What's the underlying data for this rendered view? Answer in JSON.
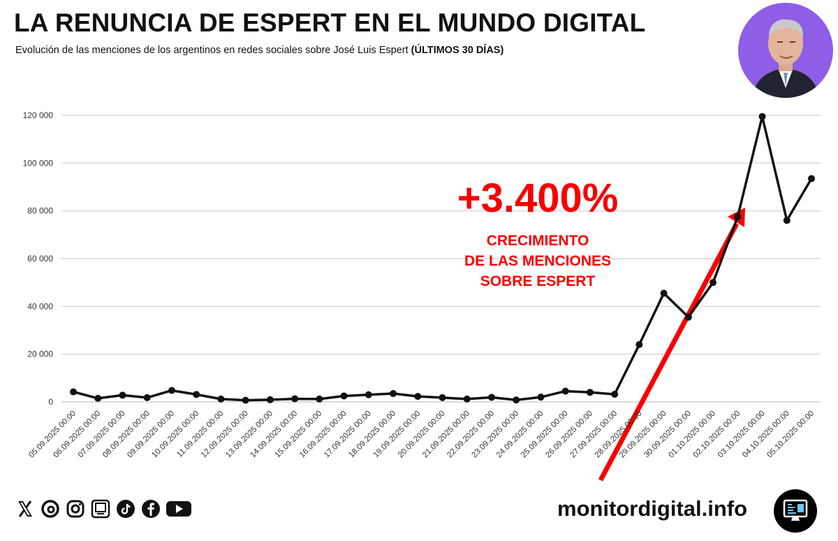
{
  "header": {
    "title": "LA RENUNCIA DE ESPERT EN EL MUNDO DIGITAL",
    "subtitle": "Evolución de las menciones de los argentinos en redes sociales sobre José Luis Espert",
    "subtitle_bold": "(ÚLTIMOS 30 DÍAS)"
  },
  "annotation": {
    "big": "+3.400%",
    "line1": "CRECIMIENTO",
    "line2": "DE LAS MENCIONES",
    "line3": "SOBRE ESPERT"
  },
  "footer": {
    "site": "monitordigital.info",
    "social_icons": [
      "x-icon",
      "threads-icon",
      "instagram-icon",
      "kick-icon",
      "tiktok-icon",
      "facebook-icon",
      "youtube-icon"
    ]
  },
  "colors": {
    "line": "#111111",
    "accent": "#f80000",
    "grid": "#d9d9d9",
    "avatar_bg": "#8e5ee6"
  },
  "chart_data": {
    "type": "line",
    "title": "LA RENUNCIA DE ESPERT EN EL MUNDO DIGITAL",
    "xlabel": "",
    "ylabel": "",
    "ylim": [
      0,
      120000
    ],
    "yticks": [
      0,
      20000,
      40000,
      60000,
      80000,
      100000,
      120000
    ],
    "ytick_labels": [
      "0",
      "20 000",
      "40 000",
      "60 000",
      "80 000",
      "100 000",
      "120 000"
    ],
    "grid": true,
    "categories": [
      "05.09.2025 00:00",
      "06.09.2025 00:00",
      "07.09.2025 00:00",
      "08.09.2025 00:00",
      "09.09.2025 00:00",
      "10.09.2025 00:00",
      "11.09.2025 00:00",
      "12.09.2025 00:00",
      "13.09.2025 00:00",
      "14.09.2025 00:00",
      "15.09.2025 00:00",
      "16.09.2025 00:00",
      "17.09.2025 00:00",
      "18.09.2025 00:00",
      "19.09.2025 00:00",
      "20.09.2025 00:00",
      "21.09.2025 00:00",
      "22.09.2025 00:00",
      "23.09.2025 00:00",
      "24.09.2025 00:00",
      "25.09.2025 00:00",
      "26.09.2025 00:00",
      "27.09.2025 00:00",
      "28.09.2025 00:00",
      "29.09.2025 00:00",
      "30.09.2025 00:00",
      "01.10.2025 00:00",
      "02.10.2025 00:00",
      "03.10.2025 00:00",
      "04.10.2025 00:00",
      "05.10.2025 00:00"
    ],
    "series": [
      {
        "name": "Menciones",
        "values": [
          4200,
          1500,
          2800,
          1800,
          4800,
          3100,
          1200,
          700,
          900,
          1300,
          1200,
          2500,
          3000,
          3500,
          2300,
          1800,
          1200,
          1900,
          800,
          2000,
          4500,
          4000,
          3200,
          24000,
          45500,
          35500,
          50000,
          77500,
          119500,
          76000,
          93500
        ]
      }
    ]
  }
}
